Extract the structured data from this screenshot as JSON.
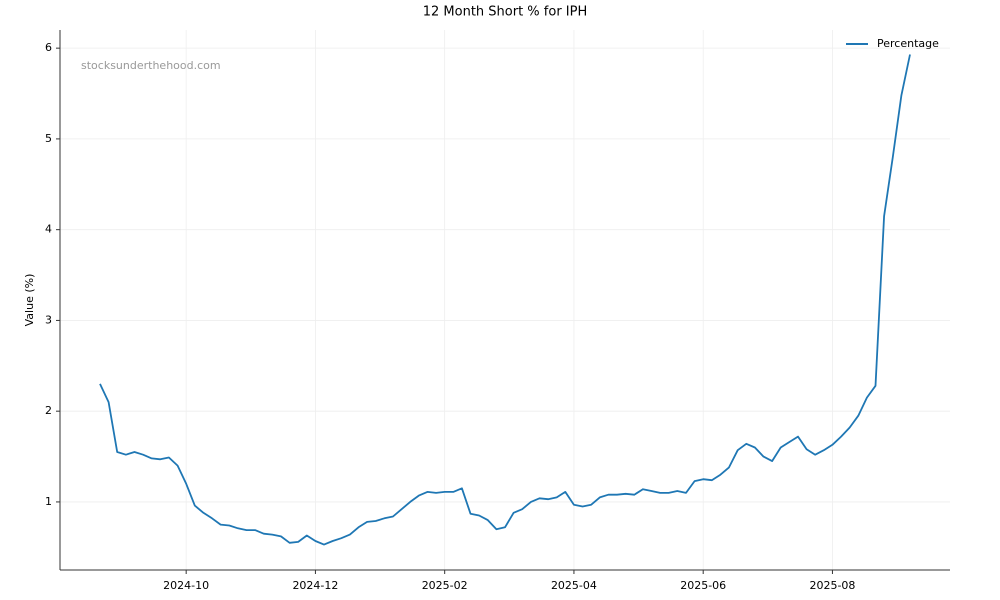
{
  "chart_data": {
    "type": "line",
    "title": "12 Month Short % for IPH",
    "y_label": "Value (%)",
    "annotation": "stocksunderthehood.com",
    "categories": [
      null,
      null,
      null,
      null,
      null,
      null,
      null,
      null,
      null,
      null,
      "2024-10",
      null,
      null,
      null,
      null,
      null,
      null,
      null,
      null,
      null,
      null,
      null,
      null,
      null,
      null,
      "2024-12",
      null,
      null,
      null,
      null,
      null,
      null,
      null,
      null,
      null,
      null,
      null,
      null,
      null,
      null,
      "2025-02",
      null,
      null,
      null,
      null,
      null,
      null,
      null,
      null,
      null,
      null,
      null,
      null,
      null,
      null,
      "2025-04",
      null,
      null,
      null,
      null,
      null,
      null,
      null,
      null,
      null,
      null,
      null,
      null,
      null,
      null,
      "2025-06",
      null,
      null,
      null,
      null,
      null,
      null,
      null,
      null,
      null,
      null,
      null,
      null,
      null,
      null,
      "2025-08",
      null,
      null,
      null,
      null,
      null,
      null,
      null,
      null,
      null
    ],
    "series": [
      {
        "name": "Percentage",
        "color": "#1f77b4",
        "values": [
          2.3,
          2.1,
          1.55,
          1.52,
          1.55,
          1.52,
          1.48,
          1.47,
          1.49,
          1.4,
          1.2,
          0.96,
          0.88,
          0.82,
          0.75,
          0.74,
          0.71,
          0.69,
          0.69,
          0.65,
          0.64,
          0.62,
          0.55,
          0.56,
          0.63,
          0.57,
          0.53,
          0.57,
          0.6,
          0.64,
          0.72,
          0.78,
          0.79,
          0.82,
          0.84,
          0.92,
          1.0,
          1.07,
          1.11,
          1.1,
          1.11,
          1.11,
          1.15,
          0.87,
          0.85,
          0.8,
          0.7,
          0.72,
          0.88,
          0.92,
          1.0,
          1.04,
          1.03,
          1.05,
          1.11,
          0.97,
          0.95,
          0.97,
          1.05,
          1.08,
          1.08,
          1.09,
          1.08,
          1.14,
          1.12,
          1.1,
          1.1,
          1.12,
          1.1,
          1.23,
          1.25,
          1.24,
          1.3,
          1.38,
          1.57,
          1.64,
          1.6,
          1.5,
          1.45,
          1.6,
          1.66,
          1.72,
          1.58,
          1.52,
          1.57,
          1.63,
          1.72,
          1.82,
          1.95,
          2.15,
          2.28,
          4.15,
          4.8,
          5.48,
          5.93
        ]
      }
    ],
    "ylim": [
      0.25,
      6.2
    ],
    "yticks": [
      1,
      2,
      3,
      4,
      5,
      6
    ],
    "grid": true,
    "legend": "upper right"
  }
}
